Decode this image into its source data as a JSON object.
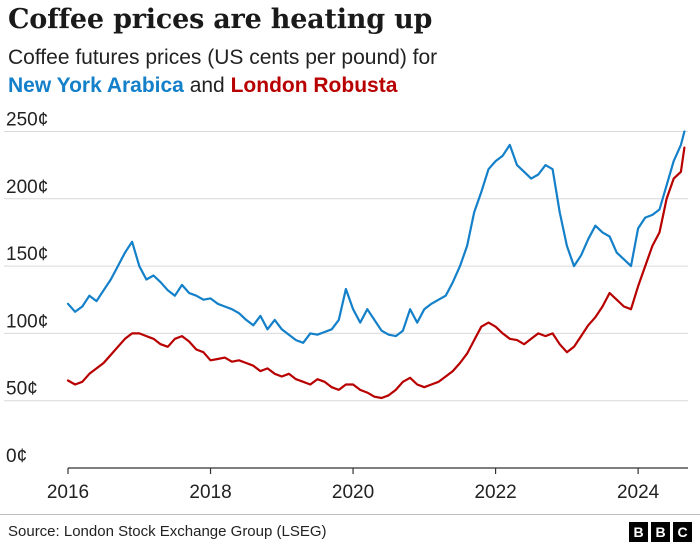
{
  "header": {
    "title": "Coffee prices are heating up",
    "subtitle_prefix": "Coffee futures prices (US cents per pound) for",
    "series_a_name": "New York Arabica",
    "conjunction": "and",
    "series_b_name": "London Robusta"
  },
  "footer": {
    "source": "Source: London Stock Exchange Group (LSEG)",
    "logo_letters": [
      "B",
      "B",
      "C"
    ]
  },
  "chart_data": {
    "type": "line",
    "xlabel": "",
    "ylabel": "",
    "xlim": [
      2016,
      2024.7
    ],
    "ylim": [
      0,
      260
    ],
    "x_ticks": [
      2016,
      2018,
      2020,
      2022,
      2024
    ],
    "x_tick_labels": [
      "2016",
      "2018",
      "2020",
      "2022",
      "2024"
    ],
    "y_ticks": [
      0,
      50,
      100,
      150,
      200,
      250
    ],
    "y_tick_labels": [
      "0¢",
      "50¢",
      "100¢",
      "150¢",
      "200¢",
      "250¢"
    ],
    "grid": "horizontal",
    "colors": {
      "arabica": "#1380c9",
      "robusta": "#b80000",
      "grid": "#d9d9d9",
      "axis": "#333333"
    },
    "series": [
      {
        "name": "New York Arabica",
        "x": [
          2016.0,
          2016.1,
          2016.2,
          2016.3,
          2016.4,
          2016.5,
          2016.6,
          2016.7,
          2016.8,
          2016.9,
          2017.0,
          2017.1,
          2017.2,
          2017.3,
          2017.4,
          2017.5,
          2017.6,
          2017.7,
          2017.8,
          2017.9,
          2018.0,
          2018.1,
          2018.2,
          2018.3,
          2018.4,
          2018.5,
          2018.6,
          2018.7,
          2018.8,
          2018.9,
          2019.0,
          2019.1,
          2019.2,
          2019.3,
          2019.4,
          2019.5,
          2019.6,
          2019.7,
          2019.8,
          2019.9,
          2020.0,
          2020.1,
          2020.2,
          2020.3,
          2020.4,
          2020.5,
          2020.6,
          2020.7,
          2020.8,
          2020.9,
          2021.0,
          2021.1,
          2021.2,
          2021.3,
          2021.4,
          2021.5,
          2021.6,
          2021.7,
          2021.8,
          2021.9,
          2022.0,
          2022.1,
          2022.2,
          2022.3,
          2022.4,
          2022.5,
          2022.6,
          2022.7,
          2022.8,
          2022.9,
          2023.0,
          2023.1,
          2023.2,
          2023.3,
          2023.4,
          2023.5,
          2023.6,
          2023.7,
          2023.8,
          2023.9,
          2024.0,
          2024.1,
          2024.2,
          2024.3,
          2024.4,
          2024.5,
          2024.6,
          2024.65
        ],
        "values": [
          122,
          116,
          120,
          128,
          124,
          132,
          140,
          150,
          160,
          168,
          150,
          140,
          143,
          138,
          132,
          128,
          136,
          130,
          128,
          125,
          126,
          122,
          120,
          118,
          115,
          110,
          106,
          113,
          103,
          110,
          103,
          99,
          95,
          93,
          100,
          99,
          101,
          103,
          110,
          133,
          118,
          108,
          118,
          110,
          102,
          99,
          98,
          102,
          118,
          108,
          118,
          122,
          125,
          128,
          138,
          150,
          165,
          190,
          205,
          222,
          228,
          232,
          240,
          225,
          220,
          215,
          218,
          225,
          222,
          190,
          165,
          150,
          158,
          170,
          180,
          175,
          172,
          160,
          155,
          150,
          178,
          186,
          188,
          192,
          210,
          228,
          240,
          250
        ]
      },
      {
        "name": "London Robusta",
        "x": [
          2016.0,
          2016.1,
          2016.2,
          2016.3,
          2016.4,
          2016.5,
          2016.6,
          2016.7,
          2016.8,
          2016.9,
          2017.0,
          2017.1,
          2017.2,
          2017.3,
          2017.4,
          2017.5,
          2017.6,
          2017.7,
          2017.8,
          2017.9,
          2018.0,
          2018.1,
          2018.2,
          2018.3,
          2018.4,
          2018.5,
          2018.6,
          2018.7,
          2018.8,
          2018.9,
          2019.0,
          2019.1,
          2019.2,
          2019.3,
          2019.4,
          2019.5,
          2019.6,
          2019.7,
          2019.8,
          2019.9,
          2020.0,
          2020.1,
          2020.2,
          2020.3,
          2020.4,
          2020.5,
          2020.6,
          2020.7,
          2020.8,
          2020.9,
          2021.0,
          2021.1,
          2021.2,
          2021.3,
          2021.4,
          2021.5,
          2021.6,
          2021.7,
          2021.8,
          2021.9,
          2022.0,
          2022.1,
          2022.2,
          2022.3,
          2022.4,
          2022.5,
          2022.6,
          2022.7,
          2022.8,
          2022.9,
          2023.0,
          2023.1,
          2023.2,
          2023.3,
          2023.4,
          2023.5,
          2023.6,
          2023.7,
          2023.8,
          2023.9,
          2024.0,
          2024.1,
          2024.2,
          2024.3,
          2024.4,
          2024.5,
          2024.6,
          2024.65
        ],
        "values": [
          65,
          62,
          64,
          70,
          74,
          78,
          84,
          90,
          96,
          100,
          100,
          98,
          96,
          92,
          90,
          96,
          98,
          94,
          88,
          86,
          80,
          81,
          82,
          79,
          80,
          78,
          76,
          72,
          74,
          70,
          68,
          70,
          66,
          64,
          62,
          66,
          64,
          60,
          58,
          62,
          62,
          58,
          56,
          53,
          52,
          54,
          58,
          64,
          67,
          62,
          60,
          62,
          64,
          68,
          72,
          78,
          85,
          95,
          105,
          108,
          105,
          100,
          96,
          95,
          92,
          96,
          100,
          98,
          100,
          92,
          86,
          90,
          98,
          106,
          112,
          120,
          130,
          125,
          120,
          118,
          135,
          150,
          165,
          175,
          200,
          215,
          220,
          238
        ]
      }
    ]
  }
}
